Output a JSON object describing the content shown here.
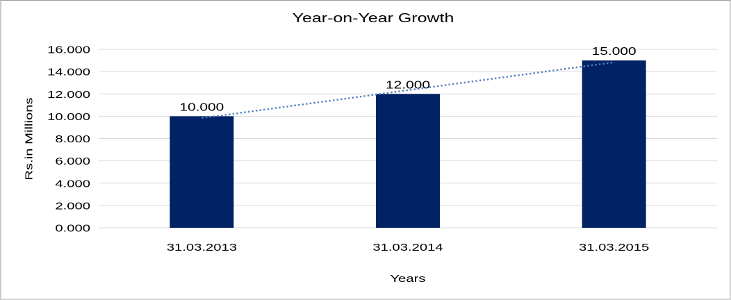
{
  "chart_data": {
    "type": "bar",
    "title": "Year-on-Year Growth",
    "xlabel": "Years",
    "ylabel": "Rs.in Millions",
    "categories": [
      "31.03.2013",
      "31.03.2014",
      "31.03.2015"
    ],
    "values": [
      10,
      12,
      15
    ],
    "value_labels": [
      "10.000",
      "12.000",
      "15.000"
    ],
    "ylim": [
      0,
      16
    ],
    "ytick_step": 2,
    "ytick_labels": [
      "0.000",
      "2.000",
      "4.000",
      "6.000",
      "8.000",
      "10.000",
      "12.000",
      "14.000",
      "16.000"
    ],
    "grid": true,
    "legend": "none",
    "trendline": {
      "type": "linear",
      "style": "dotted"
    },
    "colors": {
      "bar": "#022266",
      "gridline": "#d9d9d9",
      "trendline": "#4f81bd",
      "text": "#000000"
    }
  }
}
